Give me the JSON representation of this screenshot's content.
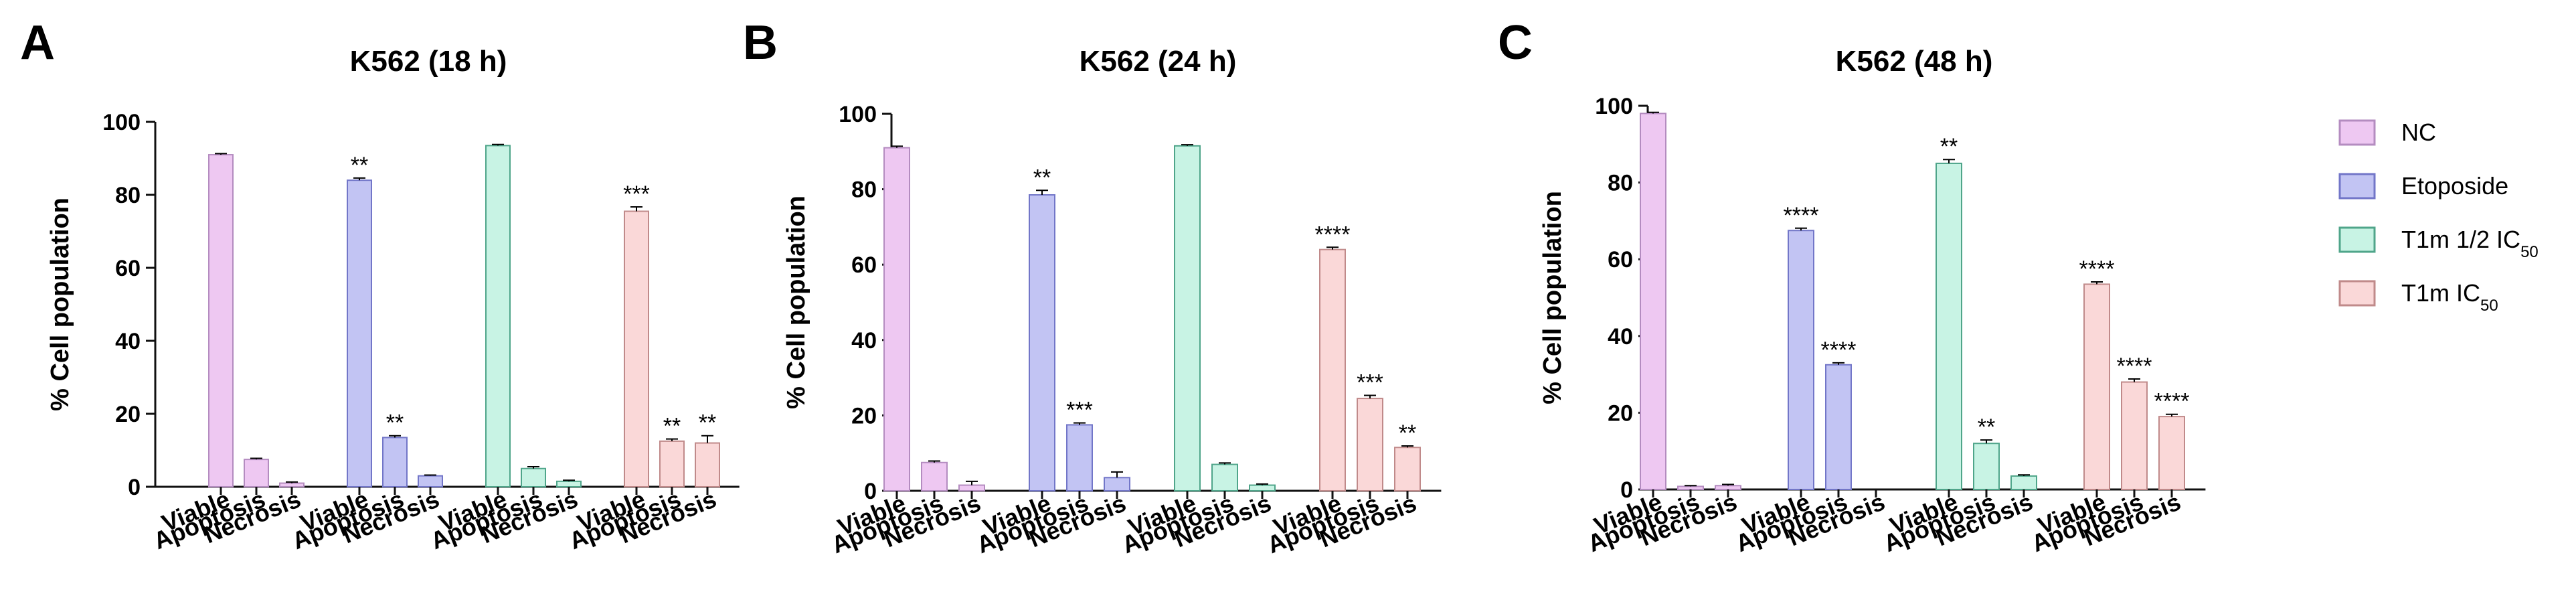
{
  "chart_data": [
    {
      "type": "bar",
      "panel_letter": "A",
      "title": "K562 (18 h)",
      "ylabel": "% Cell population",
      "xlabel": "",
      "ylim": [
        0,
        100
      ],
      "yticks": [
        0,
        20,
        40,
        60,
        80,
        100
      ],
      "categories": [
        "Viable",
        "Apoptosis",
        "Necrosis"
      ],
      "series": [
        {
          "name": "NC",
          "values": [
            91,
            7.5,
            1
          ],
          "errors": [
            0.3,
            0.3,
            0.3
          ],
          "sig": [
            "",
            "",
            ""
          ]
        },
        {
          "name": "Etoposide",
          "values": [
            84,
            13.5,
            3
          ],
          "errors": [
            0.6,
            0.5,
            0.2
          ],
          "sig": [
            "**",
            "**",
            ""
          ]
        },
        {
          "name": "T1m 1/2 IC50",
          "values": [
            93.5,
            5,
            1.5
          ],
          "errors": [
            0.3,
            0.5,
            0.3
          ],
          "sig": [
            "",
            "",
            ""
          ]
        },
        {
          "name": "T1m IC50",
          "values": [
            75.5,
            12.5,
            12
          ],
          "errors": [
            1.2,
            0.6,
            2.0
          ],
          "sig": [
            "***",
            "**",
            "**"
          ]
        }
      ]
    },
    {
      "type": "bar",
      "panel_letter": "B",
      "title": "K562 (24 h)",
      "ylabel": "% Cell population",
      "xlabel": "",
      "ylim": [
        0,
        100
      ],
      "yticks": [
        0,
        20,
        40,
        60,
        80,
        100
      ],
      "categories": [
        "Viable",
        "Apoptosis",
        "Necrosis"
      ],
      "series": [
        {
          "name": "NC",
          "values": [
            91,
            7.5,
            1.5
          ],
          "errors": [
            0.4,
            0.4,
            1.0
          ],
          "sig": [
            "",
            "",
            ""
          ]
        },
        {
          "name": "Etoposide",
          "values": [
            78.5,
            17.5,
            3.5
          ],
          "errors": [
            1.2,
            0.5,
            1.5
          ],
          "sig": [
            "**",
            "***",
            ""
          ]
        },
        {
          "name": "T1m 1/2 IC50",
          "values": [
            91.5,
            7,
            1.5
          ],
          "errors": [
            0.3,
            0.4,
            0.3
          ],
          "sig": [
            "",
            "",
            ""
          ]
        },
        {
          "name": "T1m IC50",
          "values": [
            64,
            24.5,
            11.5
          ],
          "errors": [
            0.6,
            0.8,
            0.4
          ],
          "sig": [
            "****",
            "***",
            "**"
          ]
        }
      ]
    },
    {
      "type": "bar",
      "panel_letter": "C",
      "title": "K562 (48 h)",
      "ylabel": "% Cell population",
      "xlabel": "",
      "ylim": [
        0,
        100
      ],
      "yticks": [
        0,
        20,
        40,
        60,
        80,
        100
      ],
      "categories": [
        "Viable",
        "Apoptosis",
        "Necrosis"
      ],
      "series": [
        {
          "name": "NC",
          "values": [
            98,
            0.8,
            1
          ],
          "errors": [
            0.3,
            0.2,
            0.3
          ],
          "sig": [
            "",
            "",
            ""
          ]
        },
        {
          "name": "Etoposide",
          "values": [
            67.5,
            32.5,
            0
          ],
          "errors": [
            0.6,
            0.5,
            0
          ],
          "sig": [
            "****",
            "****",
            ""
          ]
        },
        {
          "name": "T1m 1/2 IC50",
          "values": [
            85,
            12,
            3.5
          ],
          "errors": [
            1.0,
            0.9,
            0.3
          ],
          "sig": [
            "**",
            "**",
            ""
          ]
        },
        {
          "name": "T1m IC50",
          "values": [
            53.5,
            28,
            19
          ],
          "errors": [
            0.6,
            0.8,
            0.6
          ],
          "sig": [
            "****",
            "****",
            "****"
          ]
        }
      ]
    }
  ],
  "legend": {
    "placement": "right",
    "items": [
      {
        "label": "NC",
        "sub": "",
        "color": "#EEC8F2"
      },
      {
        "label": "Etoposide",
        "sub": "",
        "color": "#C2C4F3"
      },
      {
        "label": "T1m 1/2 IC",
        "sub": "50",
        "color": "#C8F3E4"
      },
      {
        "label": "T1m IC",
        "sub": "50",
        "color": "#FAD8D8"
      }
    ]
  },
  "colors": {
    "fills": [
      "#EEC8F2",
      "#C2C4F3",
      "#C8F3E4",
      "#FAD8D8"
    ],
    "edges": [
      "#B48CC0",
      "#7276C8",
      "#4FA58A",
      "#C08A8A"
    ],
    "axis": "#111111"
  }
}
